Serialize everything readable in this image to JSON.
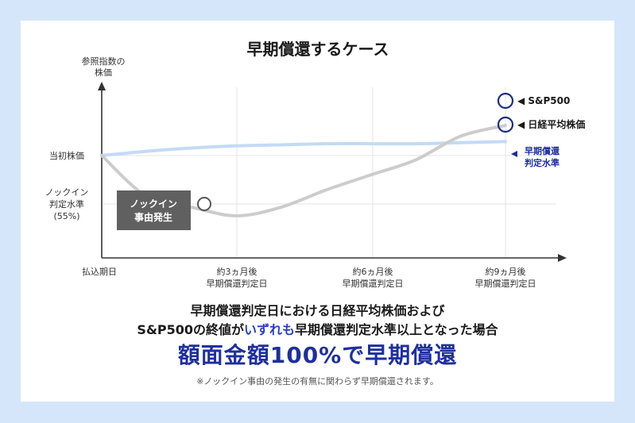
{
  "title": "早期償還するケース",
  "chart_data": {
    "type": "line",
    "ylabel_line1": "参照指数の",
    "ylabel_line2": "株価",
    "y_ticks": {
      "initial": "当初株価",
      "knockin_line1": "ノックイン",
      "knockin_line2": "判定水準",
      "knockin_line3": "(55%)"
    },
    "x_ticks": [
      {
        "line1": "払込期日",
        "line2": ""
      },
      {
        "line1": "約3ヵ月後",
        "line2": "早期償還判定日"
      },
      {
        "line1": "約6ヵ月後",
        "line2": "早期償還判定日"
      },
      {
        "line1": "約9ヵ月後",
        "line2": "早期償還判定日"
      }
    ],
    "x": [
      0,
      1,
      2,
      3,
      4,
      5,
      6,
      7,
      8,
      9
    ],
    "series": [
      {
        "name": "S&P500",
        "color": "#cccccc",
        "values": [
          100,
          62,
          52,
          44,
          52,
          68,
          82,
          96,
          118,
          128
        ]
      },
      {
        "name": "日経平均株価",
        "color": "#c3daf5",
        "values": [
          100,
          104,
          107,
          109,
          110,
          111,
          111,
          111,
          112,
          113
        ]
      }
    ],
    "knockin_label_line1": "ノックイン",
    "knockin_label_line2": "事由発生",
    "redemption_label_line1": "早期償還",
    "redemption_label_line2": "判定水準",
    "legend": [
      "◀ S&P500",
      "◀ 日経平均株価"
    ]
  },
  "caption": {
    "line1": "早期償還判定日における日経平均株価および",
    "line2_pre": "S&P500の終値が",
    "line2_hl": "いずれも",
    "line2_post": "早期償還判定水準以上となった場合",
    "headline": "額面金額100%で早期償還",
    "note": "※ノックイン事由の発生の有無に関わらず早期償還されます。"
  },
  "colors": {
    "accent": "#1e2f9e",
    "sp500": "#cccccc",
    "nikkei": "#c3daf5",
    "marker": "#1d2d84",
    "knockin_box": "#606060"
  }
}
